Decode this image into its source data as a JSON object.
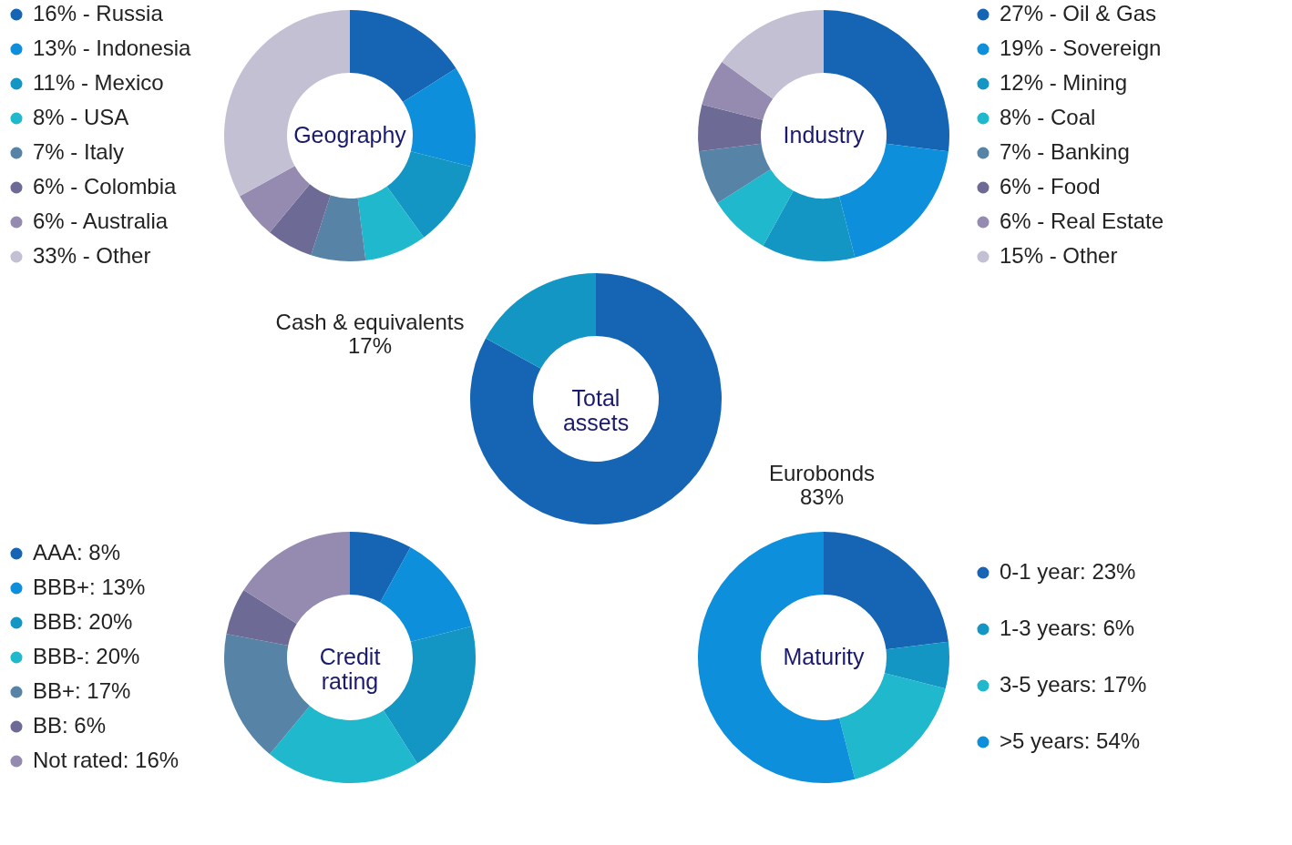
{
  "chart_data": [
    {
      "type": "donut",
      "title": "Geography",
      "legend": "left",
      "categories": [
        "16% - Russia",
        "13% - Indonesia",
        "11% - Mexico",
        "8% - USA",
        "7% - Italy",
        "6% - Colombia",
        "6% - Australia",
        "33% - Other"
      ],
      "values": [
        16,
        13,
        11,
        8,
        7,
        6,
        6,
        33
      ],
      "colors": [
        "#1565b4",
        "#0d8fdb",
        "#1496c4",
        "#20b8cc",
        "#5683a6",
        "#6e6a96",
        "#958bb0",
        "#c3c0d4"
      ]
    },
    {
      "type": "donut",
      "title": "Industry",
      "legend": "right",
      "categories": [
        "27% - Oil & Gas",
        "19% - Sovereign",
        "12% - Mining",
        "8% - Coal",
        "7% - Banking",
        "6% - Food",
        "6% - Real Estate",
        "15% - Other"
      ],
      "values": [
        27,
        19,
        12,
        8,
        7,
        6,
        6,
        15
      ],
      "colors": [
        "#1565b4",
        "#0d8fdb",
        "#1496c4",
        "#20b8cc",
        "#5683a6",
        "#6e6a96",
        "#958bb0",
        "#c3c0d4"
      ]
    },
    {
      "type": "donut",
      "title": "Total assets",
      "legend": false,
      "categories": [
        "Eurobonds",
        "Cash & equivalents"
      ],
      "values": [
        83,
        17
      ],
      "value_labels": [
        "83%",
        "17%"
      ],
      "colors": [
        "#1565b4",
        "#1496c4"
      ]
    },
    {
      "type": "donut",
      "title": "Credit rating",
      "legend": "left",
      "categories": [
        "AAA: 8%",
        "BBB+: 13%",
        "BBB: 20%",
        "BBB-: 20%",
        "BB+: 17%",
        "BB: 6%",
        "Not rated: 16%"
      ],
      "values": [
        8,
        13,
        20,
        20,
        17,
        6,
        16
      ],
      "colors": [
        "#1565b4",
        "#0d8fdb",
        "#1496c4",
        "#20b8cc",
        "#5683a6",
        "#6e6a96",
        "#958bb0"
      ]
    },
    {
      "type": "donut",
      "title": "Maturity",
      "legend": "right",
      "categories": [
        "0-1 year: 23%",
        "1-3 years: 6%",
        "3-5 years: 17%",
        ">5 years: 54%"
      ],
      "values": [
        23,
        6,
        17,
        54
      ],
      "colors": [
        "#1565b4",
        "#1496c4",
        "#20b8cc",
        "#0d8fdb"
      ]
    }
  ]
}
